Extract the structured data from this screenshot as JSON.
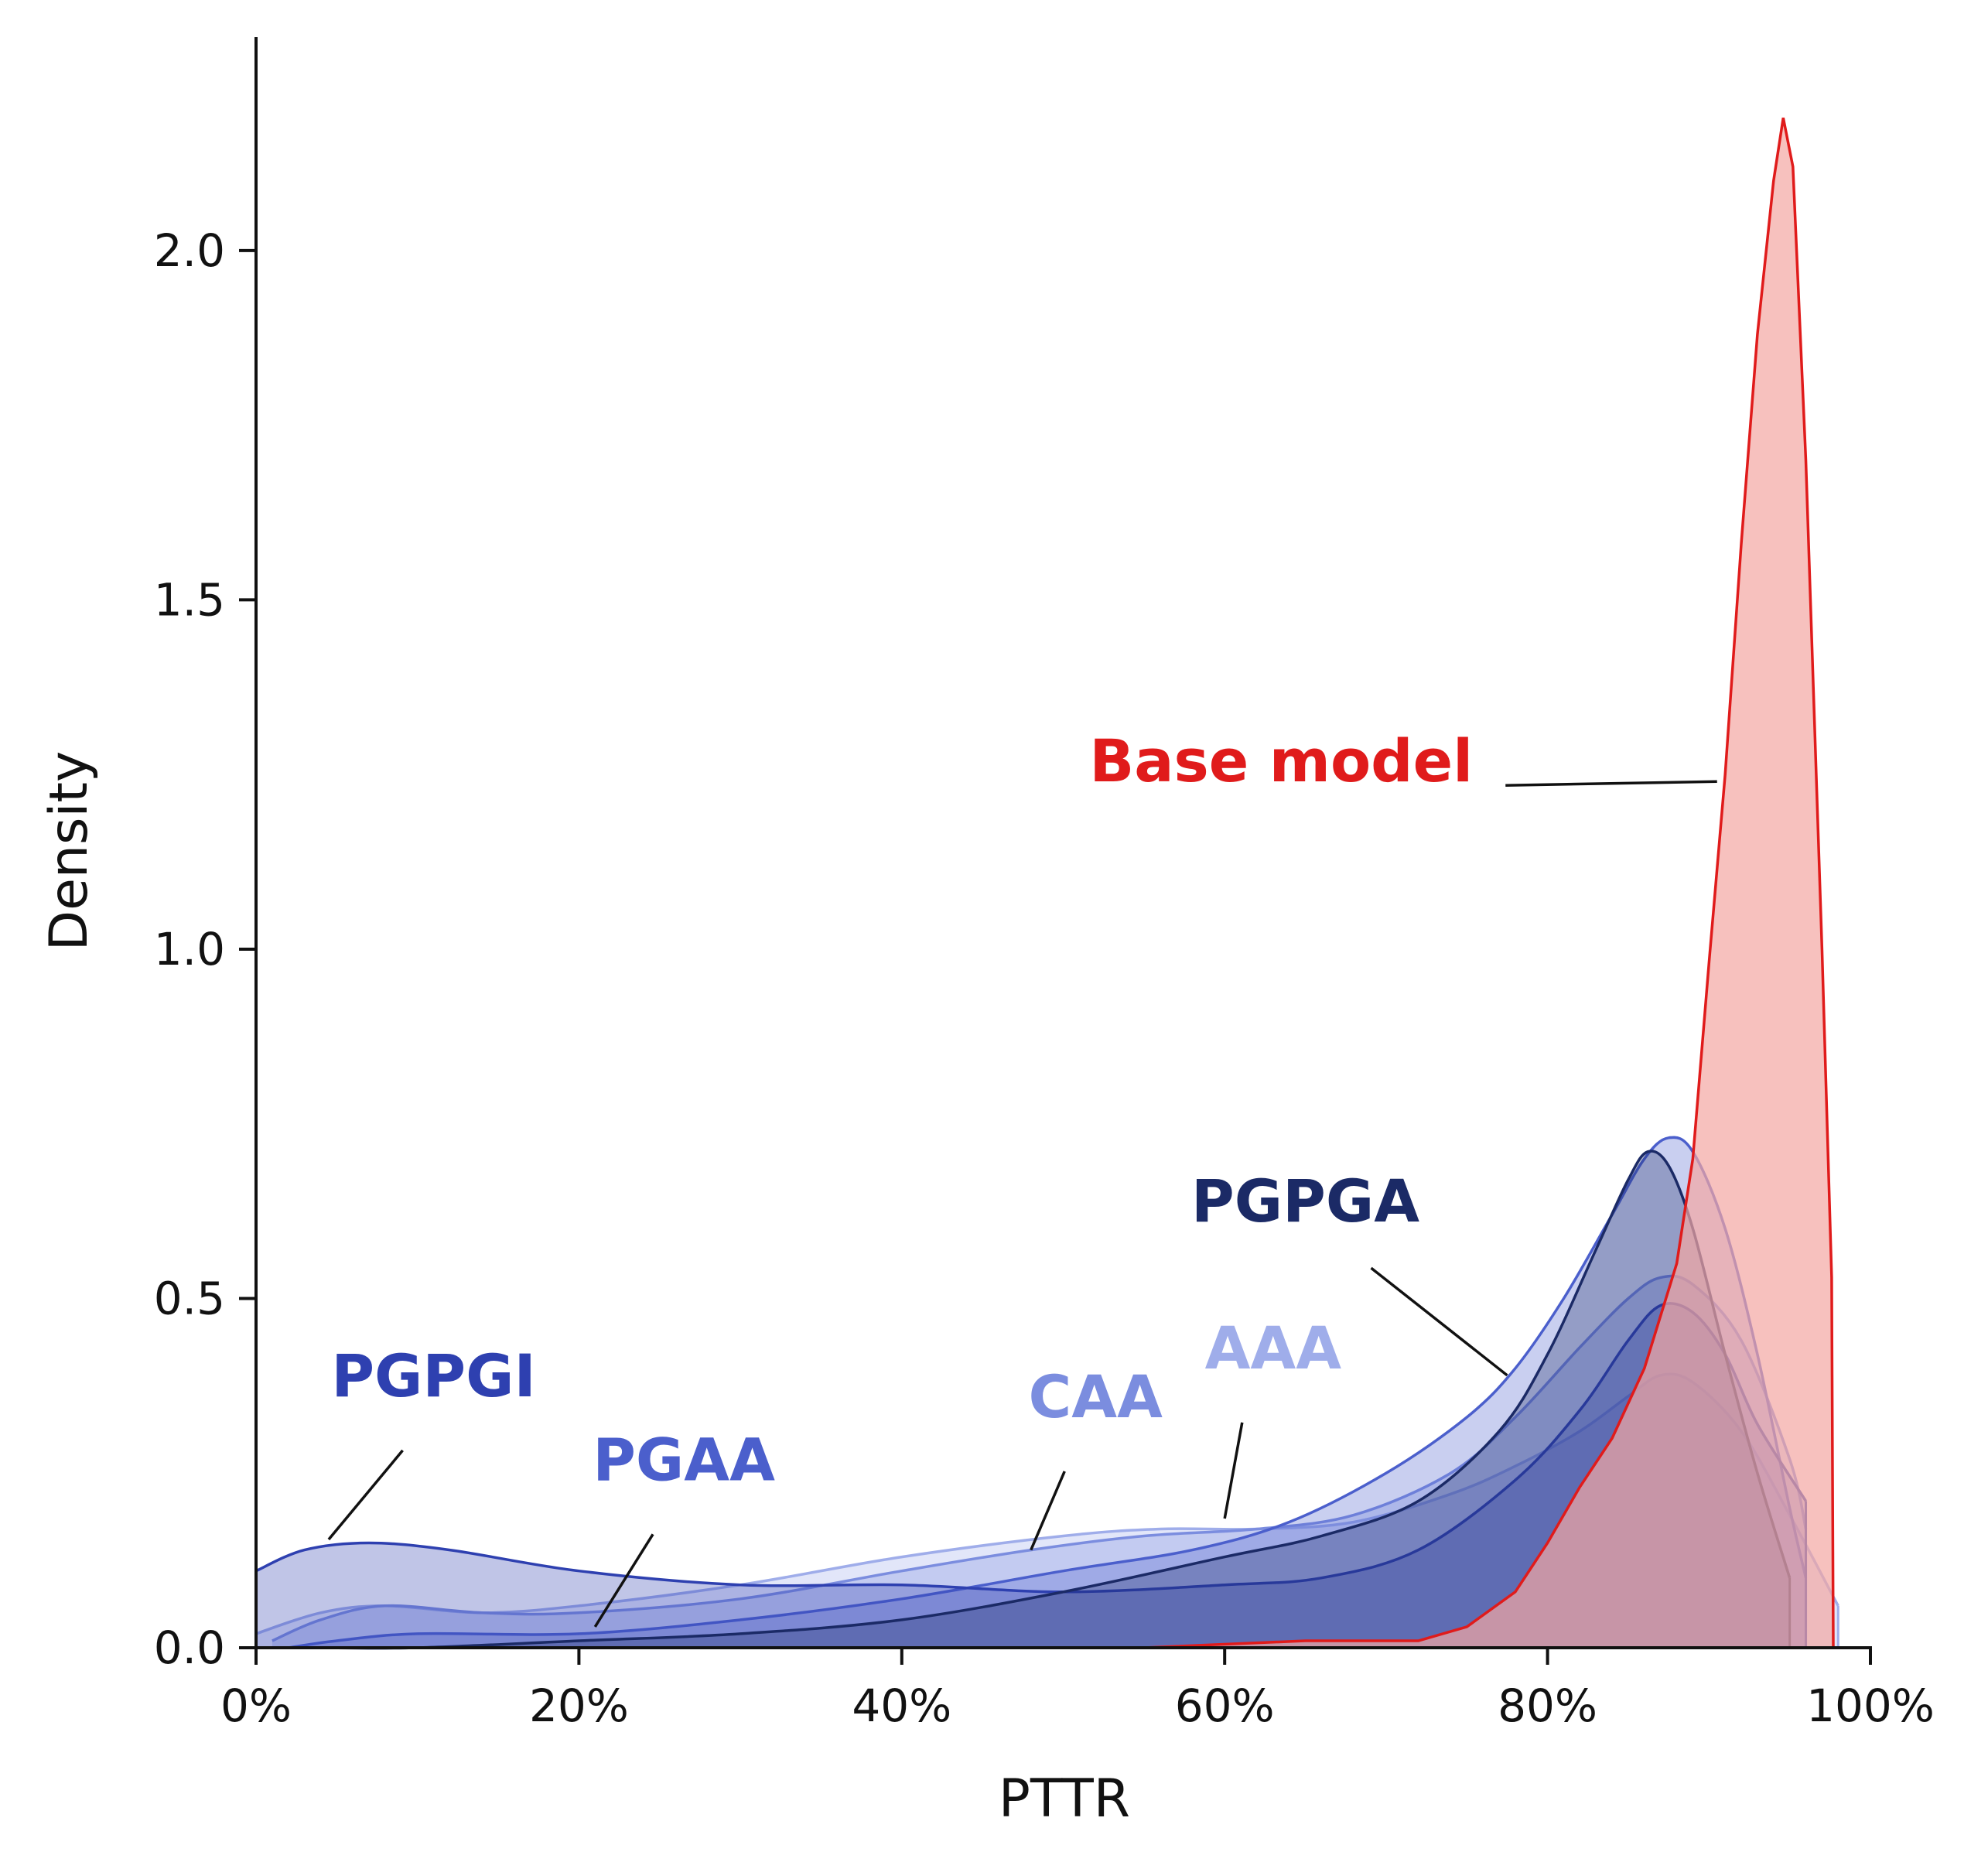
{
  "chart_data": {
    "type": "area",
    "kind": "kde-density",
    "xlabel": "PTTR",
    "ylabel": "Density",
    "xlim": [
      0,
      100
    ],
    "ylim": [
      0,
      2.3
    ],
    "x_ticks": [
      0,
      20,
      40,
      60,
      80,
      100
    ],
    "x_tick_labels": [
      "0%",
      "20%",
      "40%",
      "60%",
      "80%",
      "100%"
    ],
    "y_ticks": [
      0,
      0.5,
      1,
      1.5,
      2
    ],
    "y_tick_labels": [
      "0.0",
      "0.5",
      "1.0",
      "1.5",
      "2.0"
    ],
    "grid": false,
    "series": [
      {
        "name": "AAA",
        "label": "AAA",
        "color": "#9fadea",
        "points": [
          [
            0,
            0.02
          ],
          [
            4,
            0.05
          ],
          [
            8,
            0.06
          ],
          [
            14,
            0.05
          ],
          [
            20,
            0.06
          ],
          [
            30,
            0.09
          ],
          [
            40,
            0.13
          ],
          [
            50,
            0.16
          ],
          [
            56,
            0.17
          ],
          [
            62,
            0.17
          ],
          [
            68,
            0.18
          ],
          [
            74,
            0.22
          ],
          [
            78,
            0.26
          ],
          [
            82,
            0.31
          ],
          [
            85,
            0.36
          ],
          [
            87,
            0.39
          ],
          [
            89,
            0.38
          ],
          [
            92,
            0.31
          ],
          [
            95,
            0.19
          ],
          [
            98,
            0.06
          ]
        ],
        "label_pos": [
          63,
          0.4
        ],
        "arrow_to": [
          60,
          0.185
        ]
      },
      {
        "name": "CAA",
        "label": "CAA",
        "color": "#7b8ddf",
        "points": [
          [
            1,
            0.01
          ],
          [
            4,
            0.04
          ],
          [
            8,
            0.06
          ],
          [
            14,
            0.05
          ],
          [
            20,
            0.05
          ],
          [
            30,
            0.07
          ],
          [
            40,
            0.11
          ],
          [
            48,
            0.14
          ],
          [
            55,
            0.16
          ],
          [
            62,
            0.17
          ],
          [
            68,
            0.19
          ],
          [
            74,
            0.25
          ],
          [
            78,
            0.33
          ],
          [
            82,
            0.43
          ],
          [
            85,
            0.5
          ],
          [
            87,
            0.53
          ],
          [
            89,
            0.52
          ],
          [
            92,
            0.44
          ],
          [
            95,
            0.27
          ],
          [
            96,
            0.17
          ]
        ],
        "label_pos": [
          52,
          0.33
        ],
        "arrow_to": [
          48,
          0.14
        ]
      },
      {
        "name": "PGAA",
        "label": "PGAA",
        "color": "#4b5fcc",
        "points": [
          [
            2,
            0.0
          ],
          [
            5,
            0.01
          ],
          [
            10,
            0.02
          ],
          [
            20,
            0.02
          ],
          [
            30,
            0.04
          ],
          [
            40,
            0.07
          ],
          [
            50,
            0.11
          ],
          [
            58,
            0.14
          ],
          [
            64,
            0.18
          ],
          [
            70,
            0.25
          ],
          [
            75,
            0.33
          ],
          [
            78,
            0.4
          ],
          [
            81,
            0.5
          ],
          [
            84,
            0.62
          ],
          [
            86,
            0.7
          ],
          [
            87.5,
            0.73
          ],
          [
            89,
            0.71
          ],
          [
            91,
            0.6
          ],
          [
            93,
            0.42
          ],
          [
            95,
            0.2
          ],
          [
            96,
            0.1
          ]
        ],
        "label_pos": [
          26.5,
          0.24
        ],
        "arrow_to": [
          21,
          0.03
        ]
      },
      {
        "name": "PGPGI",
        "label": "PGPGI",
        "color": "#2e40b0",
        "points": [
          [
            0,
            0.11
          ],
          [
            3,
            0.14
          ],
          [
            7,
            0.15
          ],
          [
            12,
            0.14
          ],
          [
            20,
            0.11
          ],
          [
            30,
            0.09
          ],
          [
            40,
            0.09
          ],
          [
            50,
            0.08
          ],
          [
            60,
            0.09
          ],
          [
            66,
            0.1
          ],
          [
            72,
            0.14
          ],
          [
            78,
            0.24
          ],
          [
            82,
            0.34
          ],
          [
            85,
            0.44
          ],
          [
            87,
            0.49
          ],
          [
            89,
            0.48
          ],
          [
            91,
            0.42
          ],
          [
            93,
            0.32
          ],
          [
            96,
            0.21
          ]
        ],
        "label_pos": [
          11,
          0.36
        ],
        "arrow_to": [
          4.5,
          0.155
        ]
      },
      {
        "name": "PGPGA",
        "label": "PGPGA",
        "color": "#1b2a66",
        "points": [
          [
            4,
            0.0
          ],
          [
            10,
            0.0
          ],
          [
            20,
            0.01
          ],
          [
            30,
            0.02
          ],
          [
            40,
            0.04
          ],
          [
            50,
            0.08
          ],
          [
            60,
            0.13
          ],
          [
            66,
            0.16
          ],
          [
            72,
            0.21
          ],
          [
            77,
            0.31
          ],
          [
            80,
            0.42
          ],
          [
            83,
            0.57
          ],
          [
            85,
            0.67
          ],
          [
            86.2,
            0.71
          ],
          [
            87.5,
            0.69
          ],
          [
            89,
            0.6
          ],
          [
            91,
            0.42
          ],
          [
            93,
            0.25
          ],
          [
            95,
            0.1
          ]
        ],
        "label_pos": [
          65,
          0.61
        ],
        "arrow_to": [
          77.5,
          0.39
        ]
      },
      {
        "name": "Base model",
        "label": "Base model",
        "color": "#e01b1b",
        "fill": "#f4a6a3",
        "points": [
          [
            40,
            0.0
          ],
          [
            55,
            0.0
          ],
          [
            65,
            0.01
          ],
          [
            72,
            0.01
          ],
          [
            75,
            0.03
          ],
          [
            78,
            0.08
          ],
          [
            80,
            0.15
          ],
          [
            82,
            0.23
          ],
          [
            84,
            0.3
          ],
          [
            86,
            0.4
          ],
          [
            88,
            0.55
          ],
          [
            89,
            0.7
          ],
          [
            90,
            0.98
          ],
          [
            91,
            1.25
          ],
          [
            92,
            1.58
          ],
          [
            93,
            1.88
          ],
          [
            94,
            2.1
          ],
          [
            94.6,
            2.19
          ],
          [
            95.2,
            2.12
          ],
          [
            96,
            1.7
          ],
          [
            97,
            1.0
          ],
          [
            97.6,
            0.53
          ],
          [
            97.7,
            0.0
          ]
        ],
        "label_pos": [
          63.5,
          1.24
        ],
        "arrow_to": [
          90.5,
          1.24
        ]
      }
    ]
  }
}
